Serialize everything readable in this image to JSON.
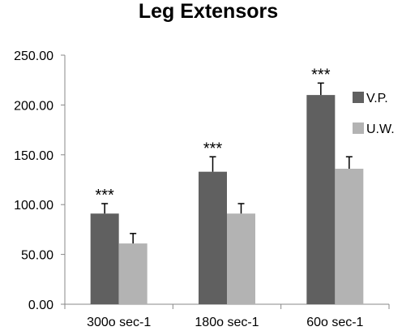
{
  "chart_data": {
    "type": "bar",
    "title": "Leg Extensors",
    "xlabel": "",
    "ylabel": "",
    "categories": [
      "300o sec-1",
      "180o sec-1",
      "60o sec-1"
    ],
    "ylim": [
      0,
      250
    ],
    "yticks": [
      "0.00",
      "50.00",
      "100.00",
      "150.00",
      "200.00",
      "250.00"
    ],
    "grid": false,
    "legend_position": "right",
    "series": [
      {
        "name": "V.P.",
        "color": "#606060",
        "values": [
          91,
          133,
          210
        ],
        "errors": [
          10,
          15,
          12
        ]
      },
      {
        "name": "U.W.",
        "color": "#b3b3b3",
        "values": [
          61,
          91,
          136
        ],
        "errors": [
          10,
          10,
          12
        ]
      }
    ],
    "annotations": [
      "***",
      "***",
      "***"
    ]
  }
}
